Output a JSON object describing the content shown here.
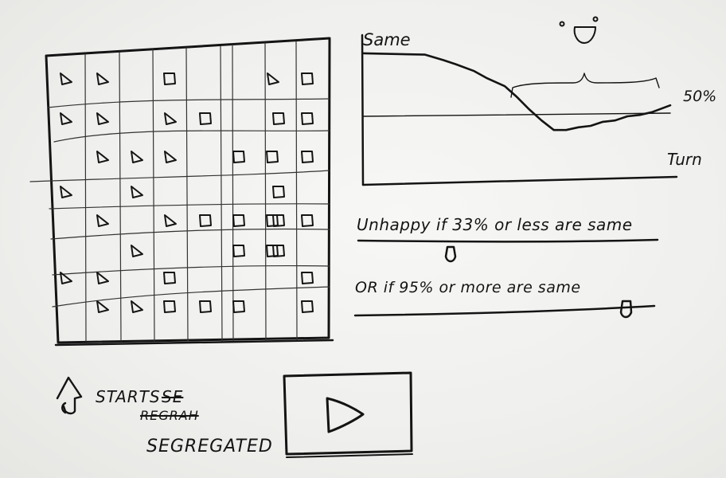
{
  "chart": {
    "y_label": "Same",
    "x_label": "Turn",
    "reference_label": "50%"
  },
  "chart_data": {
    "type": "line",
    "title": "",
    "xlabel": "Turn",
    "ylabel": "Same",
    "ylim": [
      0,
      100
    ],
    "xlim": [
      0,
      100
    ],
    "reference_line": {
      "value": 50,
      "label": "50%"
    },
    "series": [
      {
        "x": [
          0,
          20,
          26,
          30,
          36,
          40,
          46,
          50,
          54,
          58,
          62,
          66,
          70,
          74,
          78,
          82,
          86,
          90,
          94,
          100
        ],
        "values": [
          96,
          95,
          91,
          88,
          83,
          78,
          72,
          64,
          55,
          47,
          40,
          40,
          42,
          43,
          46,
          47,
          50,
          51,
          53,
          58
        ]
      }
    ],
    "annotations": [
      "smiley face above the late turns",
      "brace spanning the late turns"
    ]
  },
  "grid": {
    "rows": 8,
    "cols": 9,
    "cells": [
      [
        "tri",
        "tri",
        "",
        "sq",
        "",
        "",
        "tri",
        "",
        "sq"
      ],
      [
        "tri",
        "tri",
        "",
        "tri",
        "sq",
        "",
        "",
        "sq",
        "sq"
      ],
      [
        "",
        "tri",
        "tri",
        "tri",
        "",
        "sq",
        "sq",
        "",
        "sq"
      ],
      [
        "tri",
        "",
        "tri",
        "",
        "",
        "",
        "",
        "sq",
        ""
      ],
      [
        "",
        "tri",
        "",
        "tri",
        "sq",
        "sq",
        "sq",
        "sq",
        "sq"
      ],
      [
        "",
        "",
        "tri",
        "",
        "",
        "sq",
        "sq",
        "sq",
        ""
      ],
      [
        "tri",
        "tri",
        "",
        "sq",
        "",
        "",
        "",
        "",
        "sq"
      ],
      [
        "",
        "tri",
        "tri",
        "sq",
        "sq",
        "sq",
        "",
        "",
        "sq"
      ]
    ]
  },
  "sliders": [
    {
      "label": "Unhappy if 33% or less are same",
      "value": 33
    },
    {
      "label": "OR if 95% or more are same",
      "value": 95
    }
  ],
  "status": {
    "prefix": "STARTS",
    "strike_1": "SE",
    "strike_2": "REGRAH",
    "current": "SEGREGATED"
  },
  "icons": {
    "status": "cursor-hand-icon",
    "play": "play-icon",
    "face": "smiley-icon"
  },
  "colors": {
    "ink": "#141414",
    "paper": "#f1f1ef"
  }
}
